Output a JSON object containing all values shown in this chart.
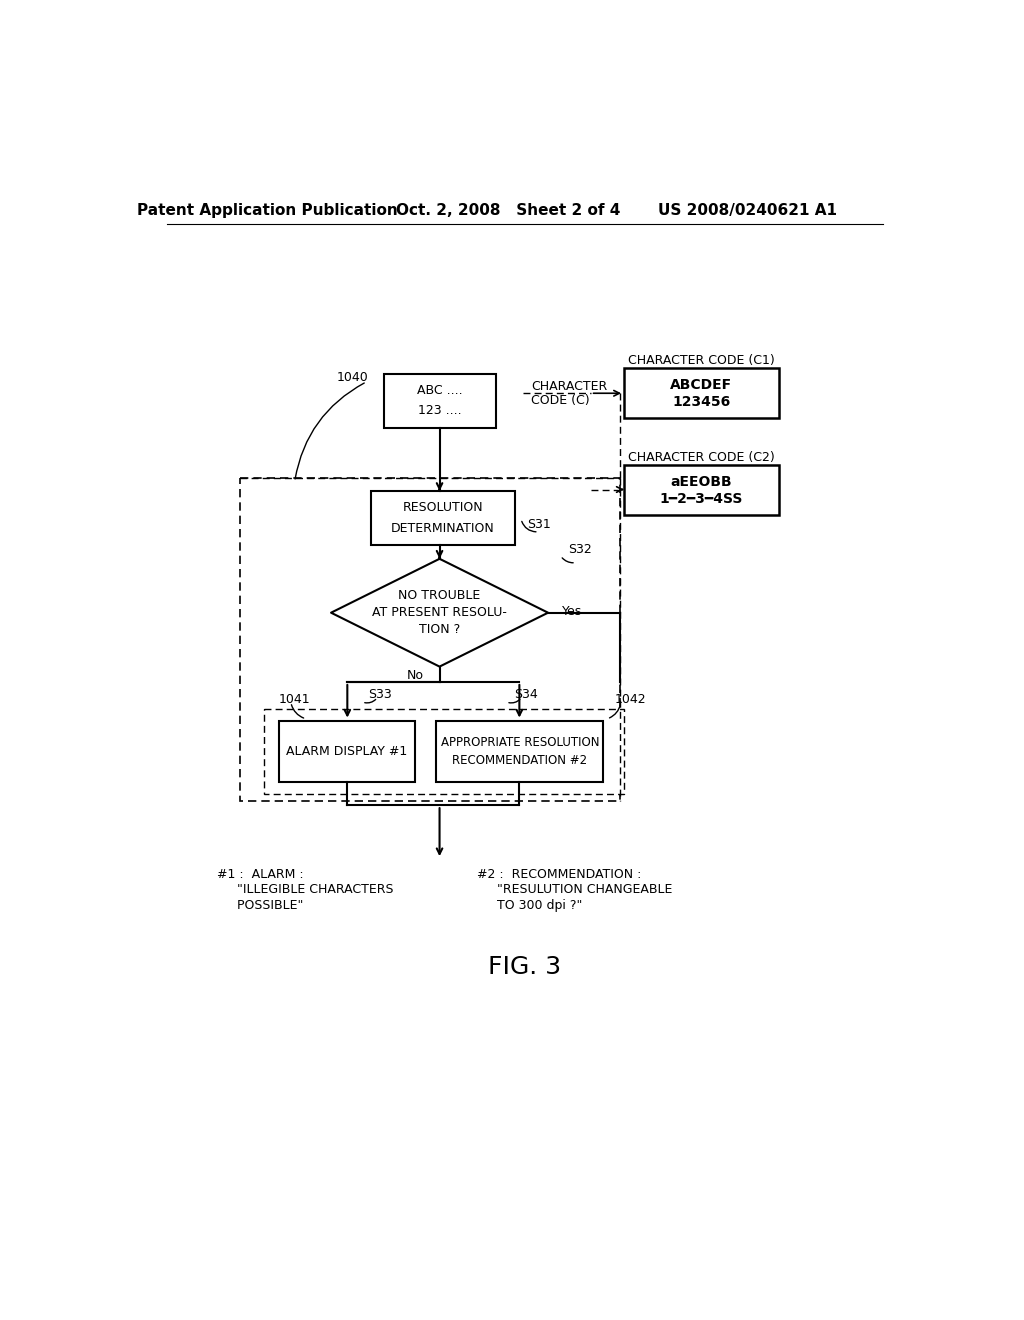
{
  "bg_color": "#ffffff",
  "header_left": "Patent Application Publication",
  "header_mid": "Oct. 2, 2008   Sheet 2 of 4",
  "header_right": "US 2008/0240621 A1",
  "fig_label": "FIG. 3",
  "label_1040": "1040",
  "label_1041": "1041",
  "label_1042": "1042",
  "char_code_c1_title": "CHARACTER CODE (C1)",
  "char_code_c2_title": "CHARACTER CODE (C2)",
  "s31_label": "S31",
  "s32_label": "S32",
  "yes_label": "Yes",
  "no_label": "No",
  "s33_label": "S33",
  "s34_label": "S34"
}
